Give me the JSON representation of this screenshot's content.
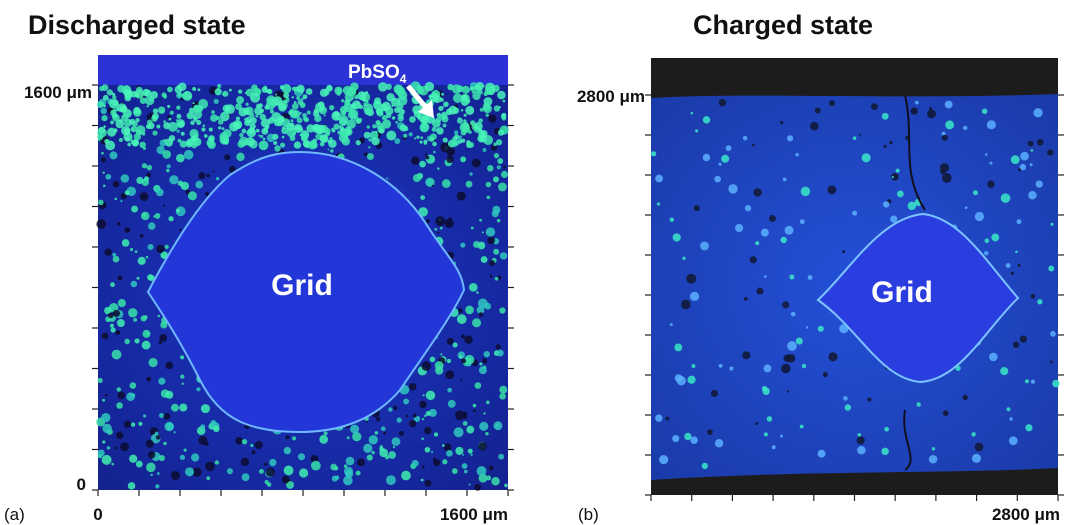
{
  "panels": [
    {
      "title": "Discharged state",
      "panel_label": "(a)",
      "y_top": "1600 μm",
      "y_bottom": "0",
      "x_left": "0",
      "x_right": "1600 μm",
      "center_label": "Grid",
      "annotation": {
        "text": "PbSO",
        "subscript": "4"
      }
    },
    {
      "title": "Charged state",
      "panel_label": "(b)",
      "y_top": "2800 μm",
      "x_right": "2800 μm",
      "center_label": "Grid"
    }
  ]
}
